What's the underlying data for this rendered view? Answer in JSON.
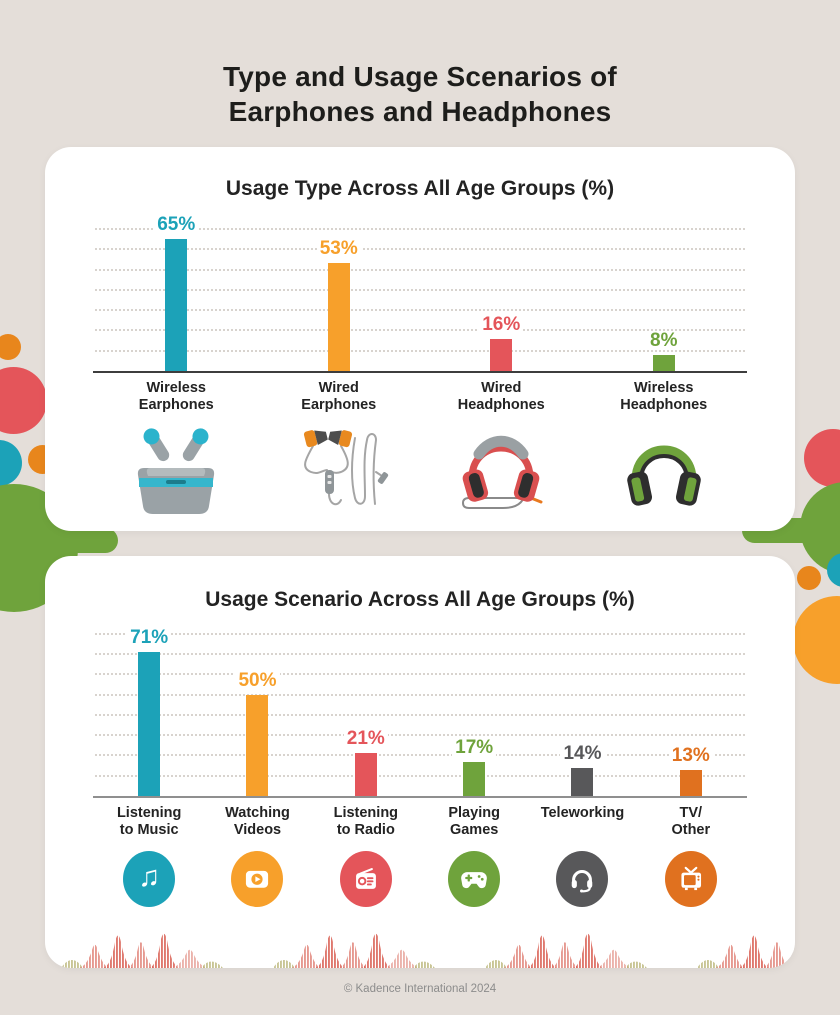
{
  "page": {
    "title_line1": "Type and Usage Scenarios of",
    "title_line2": "Earphones and Headphones",
    "footer": "© Kadence International 2024"
  },
  "palette": {
    "background": "#E4DED9",
    "card": "#FFFFFF",
    "teal": "#1CA2B8",
    "orange": "#F7A02B",
    "red": "#E4555A",
    "green": "#6FA33C",
    "dark_gray": "#58585A",
    "dark_orange": "#E0711F",
    "title_text": "#1D1D1B"
  },
  "chart_data": [
    {
      "type": "bar",
      "title": "Usage Type Across All Age Groups (%)",
      "categories": [
        "Wireless Earphones",
        "Wired Earphones",
        "Wired Headphones",
        "Wireless Headphones"
      ],
      "category_lines": [
        [
          "Wireless",
          "Earphones"
        ],
        [
          "Wired",
          "Earphones"
        ],
        [
          "Wired",
          "Headphones"
        ],
        [
          "Wireless",
          "Headphones"
        ]
      ],
      "values": [
        65,
        53,
        16,
        8
      ],
      "value_labels": [
        "65%",
        "53%",
        "16%",
        "8%"
      ],
      "bar_colors": [
        "#1CA2B8",
        "#F7A02B",
        "#E4555A",
        "#6FA33C"
      ],
      "xlabel": "",
      "ylabel": "",
      "ylim": [
        0,
        70
      ],
      "grid_step": 10,
      "grid": "dotted-horizontal",
      "legend": "none",
      "illustrations": [
        "wireless-earphones",
        "wired-earphones",
        "wired-headphones",
        "wireless-headphones"
      ]
    },
    {
      "type": "bar",
      "title": "Usage Scenario Across All Age Groups (%)",
      "categories": [
        "Listening to Music",
        "Watching Videos",
        "Listening to Radio",
        "Playing Games",
        "Teleworking",
        "TV/Other"
      ],
      "category_lines": [
        [
          "Listening",
          "to Music"
        ],
        [
          "Watching",
          "Videos"
        ],
        [
          "Listening",
          "to Radio"
        ],
        [
          "Playing",
          "Games"
        ],
        [
          "Teleworking"
        ],
        [
          "TV/",
          "Other"
        ]
      ],
      "values": [
        71,
        50,
        21,
        17,
        14,
        13
      ],
      "value_labels": [
        "71%",
        "50%",
        "21%",
        "17%",
        "14%",
        "13%"
      ],
      "bar_colors": [
        "#1CA2B8",
        "#F7A02B",
        "#E4555A",
        "#6FA33C",
        "#58585A",
        "#E0711F"
      ],
      "xlabel": "",
      "ylabel": "",
      "ylim": [
        0,
        80
      ],
      "grid_step": 10,
      "grid": "dotted-horizontal",
      "legend": "none",
      "icons": [
        {
          "name": "music-note-icon",
          "color": "#1CA2B8"
        },
        {
          "name": "video-play-icon",
          "color": "#F7A02B"
        },
        {
          "name": "radio-icon",
          "color": "#E4555A"
        },
        {
          "name": "gamepad-icon",
          "color": "#6FA33C"
        },
        {
          "name": "headset-icon",
          "color": "#58585A"
        },
        {
          "name": "tv-icon",
          "color": "#E0711F"
        }
      ]
    }
  ]
}
